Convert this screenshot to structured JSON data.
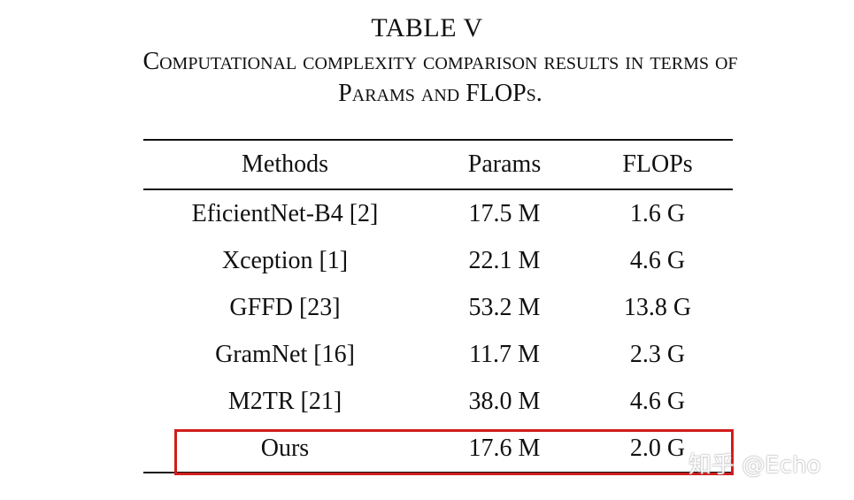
{
  "caption": {
    "label": "TABLE V",
    "line1": "Computational complexity comparison results in terms of",
    "line2": "Params and FLOPs."
  },
  "table": {
    "headers": [
      "Methods",
      "Params",
      "FLOPs"
    ],
    "rows": [
      {
        "method": "EficientNet-B4 [2]",
        "params": "17.5 M",
        "flops": "1.6 G"
      },
      {
        "method": "Xception [1]",
        "params": "22.1 M",
        "flops": "4.6 G"
      },
      {
        "method": "GFFD [23]",
        "params": "53.2 M",
        "flops": "13.8 G"
      },
      {
        "method": "GramNet [16]",
        "params": "11.7 M",
        "flops": "2.3 G"
      },
      {
        "method": "M2TR [21]",
        "params": "38.0 M",
        "flops": "4.6 G"
      },
      {
        "method": "Ours",
        "params": "17.6 M",
        "flops": "2.0 G"
      }
    ],
    "highlight_color": "#d01c1c"
  },
  "watermark": "知乎 @Echo"
}
